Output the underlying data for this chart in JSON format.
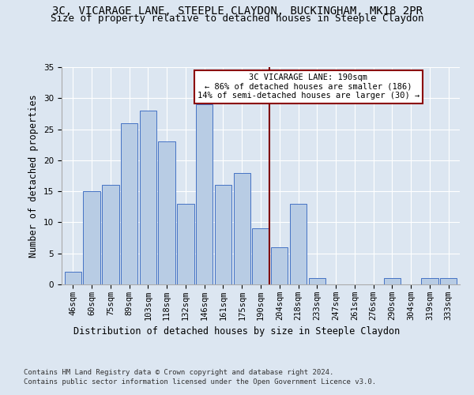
{
  "title": "3C, VICARAGE LANE, STEEPLE CLAYDON, BUCKINGHAM, MK18 2PR",
  "subtitle": "Size of property relative to detached houses in Steeple Claydon",
  "xlabel": "Distribution of detached houses by size in Steeple Claydon",
  "ylabel": "Number of detached properties",
  "categories": [
    "46sqm",
    "60sqm",
    "75sqm",
    "89sqm",
    "103sqm",
    "118sqm",
    "132sqm",
    "146sqm",
    "161sqm",
    "175sqm",
    "190sqm",
    "204sqm",
    "218sqm",
    "233sqm",
    "247sqm",
    "261sqm",
    "276sqm",
    "290sqm",
    "304sqm",
    "319sqm",
    "333sqm"
  ],
  "values": [
    2,
    15,
    16,
    26,
    28,
    23,
    13,
    29,
    16,
    18,
    9,
    6,
    13,
    1,
    0,
    0,
    0,
    1,
    0,
    1,
    1
  ],
  "bar_color": "#b8cce4",
  "bar_edge_color": "#4472c4",
  "highlight_index": 10,
  "highlight_line_color": "#7f0000",
  "ylim": [
    0,
    35
  ],
  "yticks": [
    0,
    5,
    10,
    15,
    20,
    25,
    30,
    35
  ],
  "annotation_title": "3C VICARAGE LANE: 190sqm",
  "annotation_line1": "← 86% of detached houses are smaller (186)",
  "annotation_line2": "14% of semi-detached houses are larger (30) →",
  "annotation_box_color": "#ffffff",
  "annotation_box_edge_color": "#8b0000",
  "footer1": "Contains HM Land Registry data © Crown copyright and database right 2024.",
  "footer2": "Contains public sector information licensed under the Open Government Licence v3.0.",
  "background_color": "#dce6f1",
  "plot_background_color": "#dce6f1",
  "grid_color": "#ffffff",
  "title_fontsize": 10,
  "subtitle_fontsize": 9,
  "axis_label_fontsize": 8.5,
  "tick_fontsize": 7.5,
  "footer_fontsize": 6.5
}
